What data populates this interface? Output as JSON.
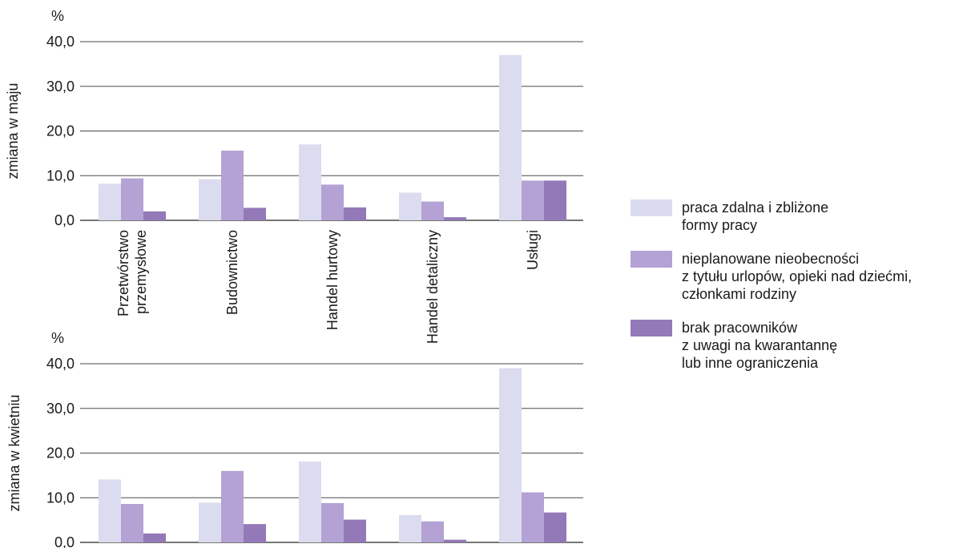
{
  "colors": {
    "series": [
      "#dcdcf0",
      "#b3a2d3",
      "#9479b8"
    ],
    "grid": "#4a4a4a"
  },
  "chart_data": [
    {
      "type": "bar",
      "ylabel": "zmiana w maju",
      "unit_label": "%",
      "categories": [
        "Przetwórstwo\nprzemysłowe",
        "Budownictwo",
        "Handel hurtowy",
        "Handel detaliczny",
        "Usługi"
      ],
      "series": [
        {
          "name": "praca zdalna i zbliżone\nformy pracy",
          "values": [
            8.2,
            9.2,
            17.0,
            6.2,
            37.0
          ]
        },
        {
          "name": "nieplanowane nieobecności\nz tytułu urlopów, opieki nad dziećmi,\nczłonkami rodziny",
          "values": [
            9.4,
            15.6,
            8.0,
            4.2,
            8.9
          ]
        },
        {
          "name": "brak pracowników\nz uwagi na kwarantannę\nlub inne ograniczenia",
          "values": [
            2.0,
            2.8,
            2.9,
            0.7,
            8.9
          ]
        }
      ],
      "ylim": [
        0,
        40
      ],
      "yticks": [
        "0,0",
        "10,0",
        "20,0",
        "30,0",
        "40,0"
      ],
      "grid": true
    },
    {
      "type": "bar",
      "ylabel": "zmiana w kwietniu",
      "unit_label": "%",
      "categories": [
        "Przetwórstwo\nprzemysłowe",
        "Budownictwo",
        "Handel hurtowy",
        "Handel detaliczny",
        "Usługi"
      ],
      "series": [
        {
          "name": "praca zdalna i zbliżone\nformy pracy",
          "values": [
            14.1,
            8.9,
            18.1,
            6.1,
            39.0
          ]
        },
        {
          "name": "nieplanowane nieobecności\nz tytułu urlopów, opieki nad dziećmi,\nczłonkami rodziny",
          "values": [
            8.6,
            16.0,
            8.8,
            4.7,
            11.2
          ]
        },
        {
          "name": "brak pracowników\nz uwagi na kwarantannę\nlub inne ograniczenia",
          "values": [
            2.0,
            4.1,
            5.1,
            0.6,
            6.7
          ]
        }
      ],
      "ylim": [
        0,
        40
      ],
      "yticks": [
        "0,0",
        "10,0",
        "20,0",
        "30,0",
        "40,0"
      ],
      "grid": true
    }
  ],
  "legend": [
    {
      "label": "praca zdalna i zbliżone\nformy pracy"
    },
    {
      "label": "nieplanowane nieobecności\nz tytułu urlopów, opieki nad dziećmi,\nczłonkami rodziny"
    },
    {
      "label": "brak pracowników\nz uwagi na kwarantannę\nlub inne ograniczenia"
    }
  ]
}
